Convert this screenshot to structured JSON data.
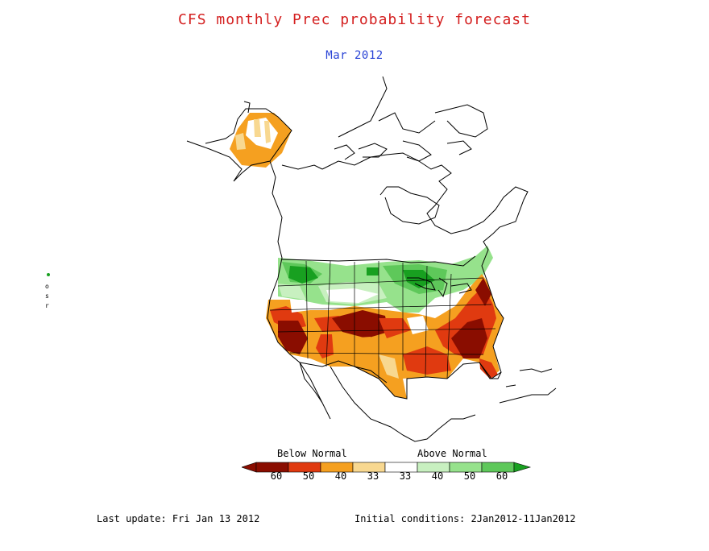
{
  "title": "CFS monthly Prec probability forecast",
  "subtitle": "Mar 2012",
  "colors": {
    "title": "#d42020",
    "subtitle": "#2a44d6",
    "below_60": "#8a0d00",
    "below_50": "#e03a10",
    "below_40": "#f5a020",
    "below_33": "#f8d890",
    "normal": "#ffffff",
    "above_33": "#c8f0c0",
    "above_40": "#96e28c",
    "above_50": "#5ec85a",
    "above_60": "#18a020"
  },
  "legend": {
    "below_label": "Below Normal",
    "above_label": "Above Normal",
    "ticks": [
      "60",
      "50",
      "40",
      "33",
      "33",
      "40",
      "50",
      "60"
    ]
  },
  "footer": {
    "last_update": "Last update: Fri Jan 13 2012",
    "initial_conditions": "Initial conditions: 2Jan2012-11Jan2012"
  }
}
